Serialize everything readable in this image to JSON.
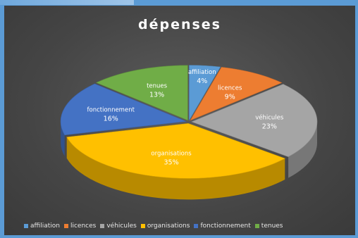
{
  "chart_data": {
    "type": "pie",
    "title": "dépenses",
    "categories": [
      "affiliation",
      "licences",
      "véhicules",
      "organisations",
      "fonctionnement",
      "tenues"
    ],
    "values": [
      4,
      9,
      23,
      35,
      16,
      13
    ],
    "value_labels": [
      "4%",
      "9%",
      "23%",
      "35%",
      "16%",
      "13%"
    ],
    "colors": [
      "#5b9bd5",
      "#ed7d31",
      "#a5a5a5",
      "#ffc000",
      "#4472c4",
      "#70ad47"
    ],
    "legend_position": "bottom",
    "style": "3d-exploded"
  }
}
